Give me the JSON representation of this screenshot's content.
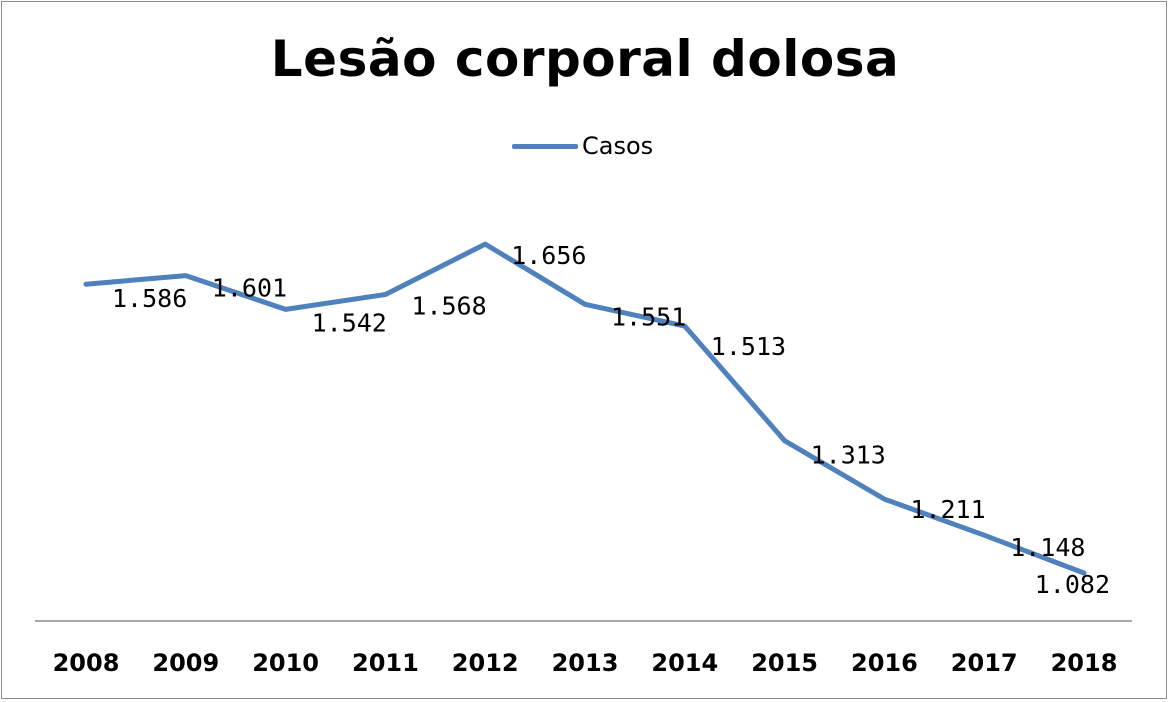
{
  "chart_data": {
    "type": "line",
    "title": "Lesão corporal dolosa",
    "xlabel": "",
    "ylabel": "",
    "categories": [
      "2008",
      "2009",
      "2010",
      "2011",
      "2012",
      "2013",
      "2014",
      "2015",
      "2016",
      "2017",
      "2018"
    ],
    "series": [
      {
        "name": "Casos",
        "values": [
          1586,
          1601,
          1542,
          1568,
          1656,
          1551,
          1513,
          1313,
          1211,
          1148,
          1082
        ],
        "labels": [
          "1.586",
          "1.601",
          "1.542",
          "1.568",
          "1.656",
          "1.551",
          "1.513",
          "1.313",
          "1.211",
          "1.148",
          "1.082"
        ],
        "color": "#4f81bd"
      }
    ],
    "ylim": [
      0,
      1800
    ],
    "grid": false,
    "legend": "top-center",
    "y_axis_visible": false
  }
}
